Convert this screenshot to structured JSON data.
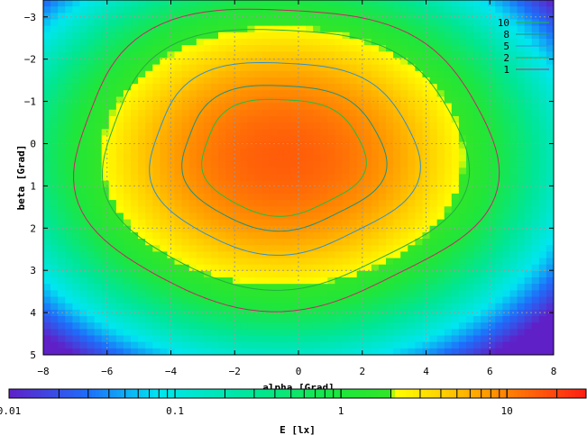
{
  "chart_data": {
    "type": "heatmap",
    "xlabel": "alpha [Grad]",
    "ylabel": "beta [Grad]",
    "xlim": [
      -8,
      8
    ],
    "ylim": [
      -3.4,
      5
    ],
    "y_axis_inverted": true,
    "x_ticks": [
      "−8",
      "−6",
      "−4",
      "−2",
      "0",
      "2",
      "4",
      "6",
      "8"
    ],
    "x_tick_values": [
      -8,
      -6,
      -4,
      -2,
      0,
      2,
      4,
      6,
      8
    ],
    "y_ticks": [
      "−3",
      "−2",
      "−1",
      "0",
      "1",
      "2",
      "3",
      "4",
      "5"
    ],
    "y_tick_values": [
      -3,
      -2,
      -1,
      0,
      1,
      2,
      3,
      4,
      5
    ],
    "grid": true,
    "peak": {
      "x": -0.5,
      "y": 0.3,
      "value": 15
    },
    "colorbar": {
      "label": "E [lx]",
      "scale": "log",
      "range": [
        0.01,
        30
      ],
      "ticks": [
        "0.01",
        "0.1",
        "1",
        "10"
      ],
      "tick_values": [
        0.01,
        0.1,
        1,
        10
      ]
    },
    "contours": [
      {
        "label": "10",
        "color": "#1fbf3f",
        "value": 10
      },
      {
        "label": "8",
        "color": "#1f8f7f",
        "value": 8
      },
      {
        "label": "5",
        "color": "#2f8fcf",
        "value": 5
      },
      {
        "label": "2",
        "color": "#20b040",
        "value": 2
      },
      {
        "label": "1",
        "color": "#cc2266",
        "value": 1
      }
    ],
    "legend_position": "top-right"
  }
}
